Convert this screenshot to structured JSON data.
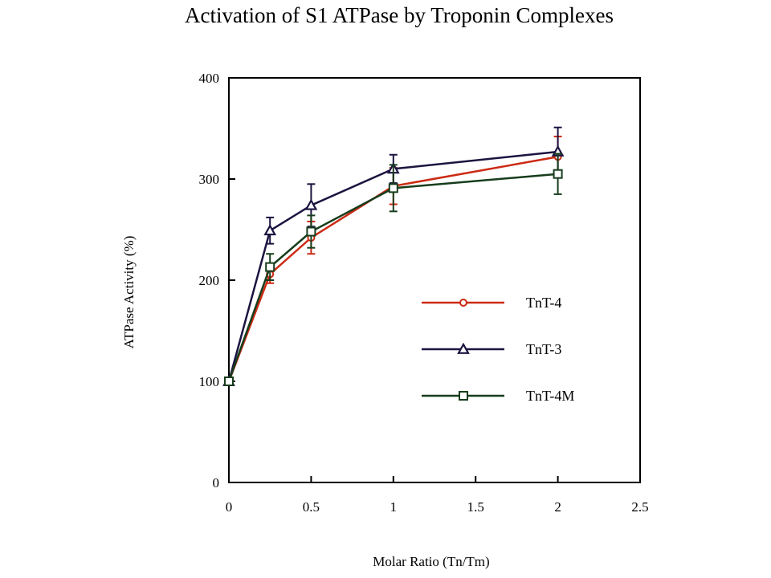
{
  "chart_data": {
    "type": "line",
    "title": "Activation of S1 ATPase by Troponin Complexes",
    "xlabel": "Molar Ratio (Tn/Tm)",
    "ylabel": "ATPase Activity (%)",
    "xlim": [
      0,
      2.5
    ],
    "ylim": [
      0,
      400
    ],
    "xticks": [
      0,
      0.5,
      1,
      1.5,
      2,
      2.5
    ],
    "xtick_labels": [
      "0",
      "0.5",
      "1",
      "1.5",
      "2",
      "2.5"
    ],
    "yticks": [
      0,
      100,
      200,
      300,
      400
    ],
    "ytick_labels": [
      "0",
      "100",
      "200",
      "300",
      "400"
    ],
    "grid": false,
    "legend_position": "center-right",
    "series": [
      {
        "name": "TnT-4",
        "color": "#cc2a14",
        "marker": "circle",
        "x": [
          0,
          0.25,
          0.5,
          1,
          2
        ],
        "y": [
          100,
          206,
          242,
          293,
          322
        ],
        "err": [
          0,
          9,
          16,
          18,
          20
        ]
      },
      {
        "name": "TnT-3",
        "color": "#1c1440",
        "marker": "triangle",
        "x": [
          0,
          0.25,
          0.5,
          1,
          2
        ],
        "y": [
          100,
          249,
          274,
          310,
          327
        ],
        "err": [
          0,
          13,
          21,
          14,
          24
        ]
      },
      {
        "name": "TnT-4M",
        "color": "#173d1c",
        "marker": "square",
        "x": [
          0,
          0.25,
          0.5,
          1,
          2
        ],
        "y": [
          100,
          213,
          248,
          291,
          305
        ],
        "err": [
          0,
          13,
          16,
          23,
          20
        ]
      }
    ]
  }
}
